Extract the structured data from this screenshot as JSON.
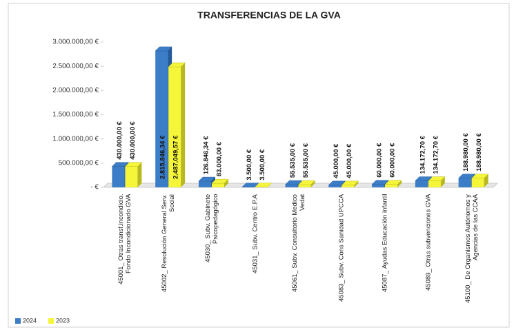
{
  "chart_data": {
    "type": "bar3d",
    "title": "TRANSFERENCIAS DE LA GVA",
    "categories": [
      "45001_ Otras transf.incondicio. Fondo Incondicionado GVA",
      "45002_ Resolución General Serv. Social",
      "45030_ Subv. Gabinete Psicopedagógico",
      "45031_ Subv. Centro E.P.A",
      "45061_ Subv. Consultorio Medico Vedat",
      "45083_ Subv. Cons Sanidad UPCCA",
      "45087_ Ayudas Educación infantil",
      "45089_ Otras subvenciones GVA",
      "45100_ De Organismos Autónomos y Agencias de las CCAA"
    ],
    "series": [
      {
        "name": "2024",
        "color": "#3c7dc8",
        "side": "#245a99",
        "values": [
          430000,
          2815846.34,
          126846.34,
          3500,
          55535,
          45000,
          60000,
          134172.7,
          188980
        ],
        "value_labels": [
          "430.000,00 €",
          "2.815.846,34 €",
          "126.846,34 €",
          "3.500,00 €",
          "55.535,00 €",
          "45.000,00 €",
          "60.000,00 €",
          "134.172,70 €",
          "188.980,00 €"
        ]
      },
      {
        "name": "2023",
        "color": "#f5f53a",
        "side": "#b8b820",
        "values": [
          430000,
          2487049.57,
          83000,
          3500,
          55535,
          45000,
          60000,
          134172.7,
          188980
        ],
        "value_labels": [
          "430.000,00 €",
          "2.487.049,57 €",
          "83.000,00 €",
          "3.500,00 €",
          "55.535,00 €",
          "45.000,00 €",
          "60.000,00 €",
          "134.172,70 €",
          "188.980,00 €"
        ]
      }
    ],
    "ylim": [
      0,
      3000000
    ],
    "yticks": [
      {
        "value": 0,
        "label": "- €"
      },
      {
        "value": 500000,
        "label": "500.000,00 €"
      },
      {
        "value": 1000000,
        "label": "1.000.000,00 €"
      },
      {
        "value": 1500000,
        "label": "1.500.000,00 €"
      },
      {
        "value": 2000000,
        "label": "2.000.000,00 €"
      },
      {
        "value": 2500000,
        "label": "2.500.000,00 €"
      },
      {
        "value": 3000000,
        "label": "3.000.000,00 €"
      }
    ],
    "legend": "bottom-left"
  }
}
